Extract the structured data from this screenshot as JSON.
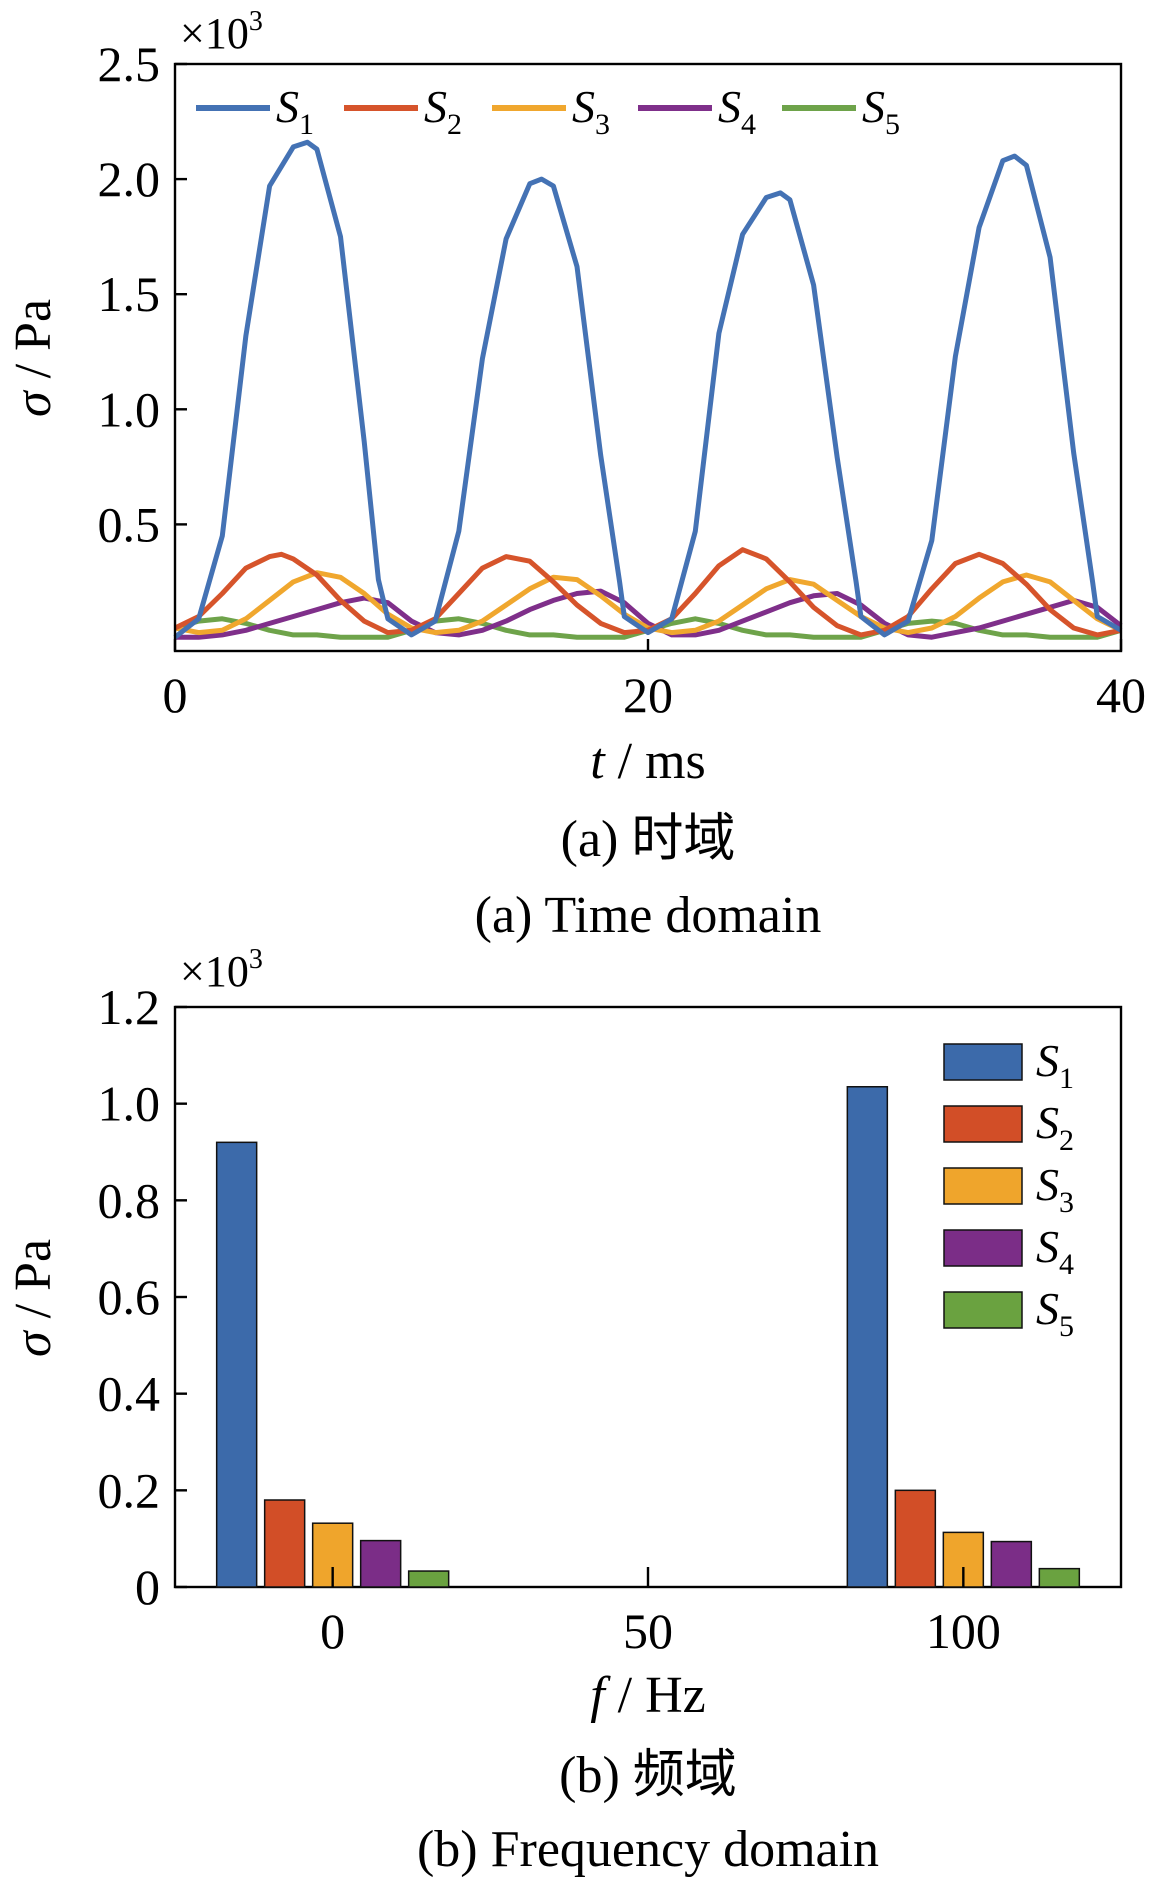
{
  "chart_data": [
    {
      "id": "a",
      "type": "line",
      "caption_cn": "(a)  时域",
      "caption_en": "(a)  Time domain",
      "xlabel_var": "t",
      "xlabel_unit": " / ms",
      "ylabel_var": "σ",
      "ylabel_unit": " / Pa",
      "scale_base": "×10",
      "scale_exp": "3",
      "xlim": [
        0,
        40
      ],
      "ylim": [
        -0.05,
        2.5
      ],
      "xticks": [
        0,
        20,
        40
      ],
      "xtick_labels": [
        "0",
        "20",
        "40"
      ],
      "yticks": [
        0.5,
        1.0,
        1.5,
        2.0,
        2.5
      ],
      "ytick_labels": [
        "0.5",
        "1.0",
        "1.5",
        "2.0",
        "2.5"
      ],
      "legend_position": "top",
      "series": [
        {
          "name": "S",
          "sub": "1",
          "color": "#4472b4",
          "x": [
            0,
            1,
            2,
            3,
            4,
            5,
            5.6,
            6,
            7,
            8,
            8.6,
            9,
            10,
            11,
            12,
            13,
            14,
            15,
            15.5,
            16,
            17,
            18,
            18.8,
            19,
            20,
            21,
            22,
            23,
            24,
            25,
            25.6,
            26,
            27,
            28,
            28.8,
            29,
            30,
            31,
            32,
            33,
            34,
            35,
            35.5,
            36,
            37,
            38,
            38.8,
            39,
            40
          ],
          "y": [
            0.01,
            0.09,
            0.45,
            1.32,
            1.97,
            2.14,
            2.16,
            2.13,
            1.75,
            0.86,
            0.26,
            0.09,
            0.02,
            0.08,
            0.47,
            1.22,
            1.74,
            1.98,
            2.0,
            1.97,
            1.62,
            0.8,
            0.25,
            0.1,
            0.03,
            0.09,
            0.47,
            1.33,
            1.76,
            1.92,
            1.94,
            1.91,
            1.54,
            0.79,
            0.25,
            0.1,
            0.02,
            0.08,
            0.43,
            1.23,
            1.79,
            2.08,
            2.1,
            2.06,
            1.66,
            0.81,
            0.25,
            0.1,
            0.04
          ]
        },
        {
          "name": "S",
          "sub": "2",
          "color": "#d6542b",
          "x": [
            0,
            1,
            2,
            3,
            4,
            4.5,
            5,
            6,
            7,
            8,
            9,
            10,
            11,
            12,
            13,
            14,
            15,
            16,
            17,
            18,
            19,
            20,
            21,
            22,
            23,
            24,
            25,
            26,
            27,
            28,
            29,
            30,
            31,
            32,
            33,
            34,
            35,
            36,
            37,
            38,
            39,
            40
          ],
          "y": [
            0.05,
            0.1,
            0.2,
            0.31,
            0.36,
            0.37,
            0.35,
            0.28,
            0.17,
            0.08,
            0.03,
            0.04,
            0.09,
            0.2,
            0.31,
            0.36,
            0.34,
            0.25,
            0.15,
            0.07,
            0.03,
            0.04,
            0.09,
            0.2,
            0.32,
            0.39,
            0.35,
            0.25,
            0.14,
            0.06,
            0.02,
            0.04,
            0.1,
            0.22,
            0.33,
            0.37,
            0.33,
            0.24,
            0.13,
            0.05,
            0.02,
            0.04
          ]
        },
        {
          "name": "S",
          "sub": "3",
          "color": "#f0a72e",
          "x": [
            0,
            1,
            2,
            3,
            4,
            5,
            6,
            7,
            8,
            9,
            10,
            11,
            12,
            13,
            14,
            15,
            16,
            17,
            18,
            19,
            20,
            21,
            22,
            23,
            24,
            25,
            26,
            27,
            28,
            29,
            30,
            31,
            32,
            33,
            34,
            35,
            36,
            37,
            38,
            39,
            40
          ],
          "y": [
            0.05,
            0.03,
            0.04,
            0.09,
            0.17,
            0.25,
            0.29,
            0.27,
            0.2,
            0.11,
            0.05,
            0.03,
            0.04,
            0.08,
            0.15,
            0.22,
            0.27,
            0.26,
            0.19,
            0.11,
            0.05,
            0.03,
            0.04,
            0.08,
            0.15,
            0.22,
            0.26,
            0.24,
            0.17,
            0.1,
            0.05,
            0.03,
            0.05,
            0.1,
            0.18,
            0.25,
            0.28,
            0.25,
            0.17,
            0.09,
            0.04
          ]
        },
        {
          "name": "S",
          "sub": "4",
          "color": "#7f2f8a",
          "x": [
            0,
            1,
            2,
            3,
            4,
            5,
            6,
            7,
            8,
            9,
            10,
            11,
            12,
            13,
            14,
            15,
            16,
            17,
            18,
            19,
            20,
            21,
            22,
            23,
            24,
            25,
            26,
            27,
            28,
            29,
            30,
            31,
            32,
            33,
            34,
            35,
            36,
            37,
            38,
            39,
            40
          ],
          "y": [
            0.01,
            0.01,
            0.02,
            0.04,
            0.07,
            0.1,
            0.13,
            0.16,
            0.18,
            0.16,
            0.08,
            0.03,
            0.02,
            0.04,
            0.08,
            0.13,
            0.17,
            0.2,
            0.21,
            0.16,
            0.07,
            0.02,
            0.02,
            0.04,
            0.08,
            0.12,
            0.16,
            0.19,
            0.2,
            0.15,
            0.07,
            0.02,
            0.01,
            0.03,
            0.05,
            0.08,
            0.11,
            0.14,
            0.17,
            0.14,
            0.06
          ]
        },
        {
          "name": "S",
          "sub": "5",
          "color": "#6ea34a",
          "x": [
            0,
            1,
            2,
            3,
            4,
            5,
            6,
            7,
            8,
            9,
            10,
            11,
            12,
            13,
            14,
            15,
            16,
            17,
            18,
            19,
            20,
            21,
            22,
            23,
            24,
            25,
            26,
            27,
            28,
            29,
            30,
            31,
            32,
            33,
            34,
            35,
            36,
            37,
            38,
            39,
            40
          ],
          "y": [
            0.05,
            0.08,
            0.09,
            0.07,
            0.04,
            0.02,
            0.02,
            0.01,
            0.01,
            0.01,
            0.04,
            0.08,
            0.09,
            0.07,
            0.04,
            0.02,
            0.02,
            0.01,
            0.01,
            0.01,
            0.04,
            0.07,
            0.09,
            0.07,
            0.04,
            0.02,
            0.02,
            0.01,
            0.01,
            0.01,
            0.04,
            0.07,
            0.08,
            0.07,
            0.04,
            0.02,
            0.02,
            0.01,
            0.01,
            0.01,
            0.04
          ]
        }
      ]
    },
    {
      "id": "b",
      "type": "bar",
      "caption_cn": "(b)  频域",
      "caption_en": "(b)  Frequency domain",
      "xlabel_var": "f",
      "xlabel_unit": " / Hz",
      "ylabel_var": "σ",
      "ylabel_unit": " / Pa",
      "scale_base": "×10",
      "scale_exp": "3",
      "xlim": [
        -25,
        125
      ],
      "ylim": [
        0,
        1.2
      ],
      "categories": [
        "0",
        "100"
      ],
      "category_values": [
        0,
        100
      ],
      "xticks": [
        0,
        50,
        100
      ],
      "xtick_labels": [
        "0",
        "50",
        "100"
      ],
      "yticks": [
        0,
        0.2,
        0.4,
        0.6,
        0.8,
        1.0,
        1.2
      ],
      "ytick_labels": [
        "0",
        "0.2",
        "0.4",
        "0.6",
        "0.8",
        "1.0",
        "1.2"
      ],
      "legend_position": "top-right",
      "series": [
        {
          "name": "S",
          "sub": "1",
          "color": "#3c6aaa",
          "values": [
            0.92,
            1.035
          ]
        },
        {
          "name": "S",
          "sub": "2",
          "color": "#d24e27",
          "values": [
            0.18,
            0.2
          ]
        },
        {
          "name": "S",
          "sub": "3",
          "color": "#efa52c",
          "values": [
            0.132,
            0.113
          ]
        },
        {
          "name": "S",
          "sub": "4",
          "color": "#7b2d87",
          "values": [
            0.096,
            0.094
          ]
        },
        {
          "name": "S",
          "sub": "5",
          "color": "#6aa240",
          "values": [
            0.033,
            0.038
          ]
        }
      ]
    }
  ]
}
